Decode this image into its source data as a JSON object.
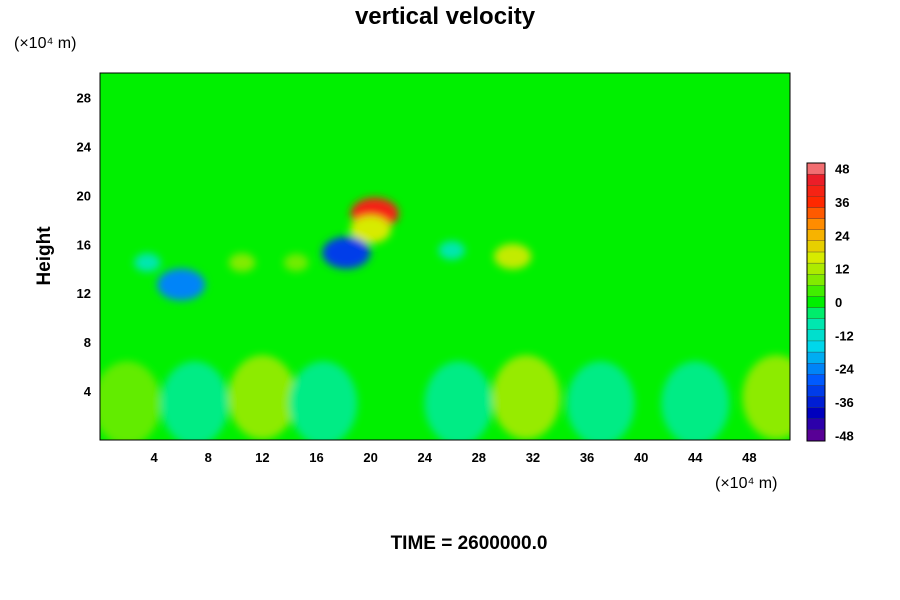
{
  "chart_data": {
    "type": "heatmap",
    "title": "vertical velocity",
    "xlabel": "",
    "ylabel": "Height",
    "x_unit_label": "(×10⁴ m)",
    "y_unit_label": "(×10⁴ m)",
    "xlim": [
      0,
      51
    ],
    "ylim": [
      0,
      30
    ],
    "x_ticks": [
      4,
      8,
      12,
      16,
      20,
      24,
      28,
      32,
      36,
      40,
      44,
      48
    ],
    "y_ticks": [
      4,
      8,
      12,
      16,
      20,
      24,
      28
    ],
    "colorbar": {
      "min": -50,
      "max": 50,
      "step": 4,
      "ticks": [
        48,
        36,
        24,
        12,
        0,
        -12,
        -24,
        -36,
        -48
      ]
    },
    "footer": "TIME = 2600000.0",
    "background_value": 0,
    "features": [
      {
        "x": 20.3,
        "y": 18.5,
        "value": 40
      },
      {
        "x": 20.0,
        "y": 17.2,
        "value": 16
      },
      {
        "x": 18.2,
        "y": 15.3,
        "value": -32
      },
      {
        "x": 6.0,
        "y": 12.7,
        "value": -24
      },
      {
        "x": 30.5,
        "y": 15.0,
        "value": 14
      },
      {
        "x": 10.5,
        "y": 14.5,
        "value": 8
      },
      {
        "x": 14.5,
        "y": 14.5,
        "value": 7
      },
      {
        "x": 26.0,
        "y": 15.5,
        "value": -8
      },
      {
        "x": 3.5,
        "y": 14.5,
        "value": -8
      },
      {
        "x": 12.0,
        "y": 3.5,
        "value": 9
      },
      {
        "x": 31.5,
        "y": 3.5,
        "value": 10
      },
      {
        "x": 50.0,
        "y": 3.5,
        "value": 9
      },
      {
        "x": 2.0,
        "y": 3.0,
        "value": 6
      },
      {
        "x": 7.0,
        "y": 3.0,
        "value": -5
      },
      {
        "x": 16.5,
        "y": 3.0,
        "value": -5
      },
      {
        "x": 26.5,
        "y": 3.0,
        "value": -5
      },
      {
        "x": 37.0,
        "y": 3.0,
        "value": -5
      },
      {
        "x": 44.0,
        "y": 3.0,
        "value": -5
      }
    ]
  }
}
